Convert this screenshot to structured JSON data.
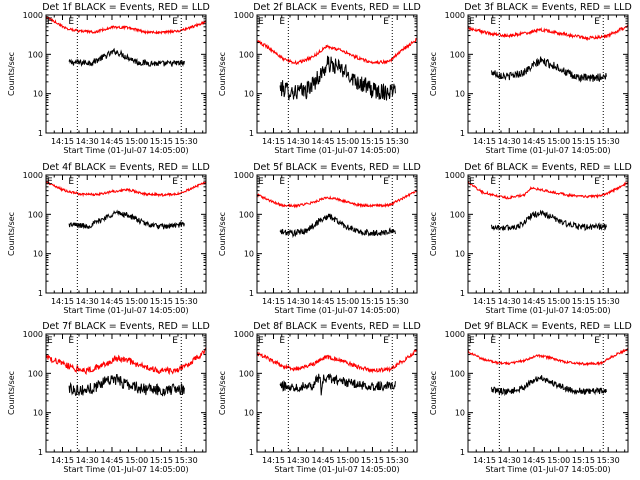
{
  "figure": {
    "x_axis_label": "Start Time (01-Jul-07 14:05:00)",
    "y_axis_label": "Counts/sec",
    "x_tick_labels": [
      "14:15",
      "14:30",
      "14:45",
      "15:00",
      "15:15",
      "15:30"
    ],
    "x_tick_minutes": [
      10,
      25,
      40,
      55,
      70,
      85
    ],
    "x_range_minutes": [
      0,
      97
    ],
    "y_tick_labels": [
      "1",
      "10",
      "100",
      "1000"
    ],
    "y_tick_values": [
      1,
      10,
      100,
      1000
    ],
    "y_range": [
      1,
      1000
    ],
    "y_scale": "log",
    "marker_label": "E",
    "colors": {
      "events": "#000000",
      "lld": "#ff0000"
    }
  },
  "chart_data": [
    {
      "type": "line",
      "title": "Det 1f BLACK = Events, RED = LLD",
      "marker_lines_minutes": [
        19,
        82
      ],
      "series": [
        {
          "name": "Events",
          "color": "#000000",
          "x": [
            14,
            28,
            42,
            56,
            70,
            84
          ],
          "y": [
            62,
            62,
            120,
            62,
            57,
            60
          ],
          "noise": 0.08
        },
        {
          "name": "LLD",
          "color": "#ff0000",
          "x": [
            0,
            6,
            12,
            20,
            30,
            40,
            50,
            60,
            70,
            80,
            87,
            92,
            97
          ],
          "y": [
            900,
            650,
            460,
            390,
            370,
            490,
            480,
            370,
            360,
            390,
            470,
            560,
            680
          ],
          "noise": 0.03
        }
      ]
    },
    {
      "type": "line",
      "title": "Det 2f BLACK = Events, RED = LLD",
      "marker_lines_minutes": [
        19,
        82
      ],
      "series": [
        {
          "name": "Events",
          "color": "#000000",
          "x": [
            14,
            22,
            30,
            38,
            43,
            50,
            60,
            70,
            80,
            84
          ],
          "y": [
            14,
            11,
            12,
            28,
            57,
            45,
            22,
            12,
            11,
            15
          ],
          "noise": 0.22
        },
        {
          "name": "LLD",
          "color": "#ff0000",
          "x": [
            0,
            8,
            16,
            24,
            34,
            42,
            50,
            60,
            70,
            80,
            88,
            97
          ],
          "y": [
            220,
            140,
            75,
            60,
            85,
            160,
            130,
            85,
            62,
            65,
            130,
            240
          ],
          "noise": 0.04
        }
      ]
    },
    {
      "type": "line",
      "title": "Det 3f BLACK = Events, RED = LLD",
      "marker_lines_minutes": [
        19,
        82
      ],
      "series": [
        {
          "name": "Events",
          "color": "#000000",
          "x": [
            14,
            24,
            34,
            44,
            54,
            64,
            74,
            84
          ],
          "y": [
            35,
            27,
            35,
            70,
            48,
            27,
            24,
            28
          ],
          "noise": 0.1
        },
        {
          "name": "LLD",
          "color": "#ff0000",
          "x": [
            0,
            8,
            15,
            24,
            34,
            44,
            52,
            62,
            72,
            82,
            90,
            97
          ],
          "y": [
            480,
            380,
            330,
            300,
            340,
            420,
            370,
            300,
            260,
            270,
            380,
            530
          ],
          "noise": 0.04
        }
      ]
    },
    {
      "type": "line",
      "title": "Det 4f BLACK = Events, RED = LLD",
      "marker_lines_minutes": [
        19,
        82
      ],
      "series": [
        {
          "name": "Events",
          "color": "#000000",
          "x": [
            14,
            26,
            34,
            42,
            50,
            60,
            70,
            84
          ],
          "y": [
            55,
            50,
            75,
            110,
            95,
            58,
            48,
            55
          ],
          "noise": 0.07
        },
        {
          "name": "LLD",
          "color": "#ff0000",
          "x": [
            0,
            10,
            20,
            30,
            40,
            50,
            60,
            70,
            80,
            88,
            97
          ],
          "y": [
            680,
            420,
            330,
            315,
            380,
            420,
            330,
            310,
            330,
            450,
            650
          ],
          "noise": 0.03
        }
      ]
    },
    {
      "type": "line",
      "title": "Det 5f BLACK = Events, RED = LLD",
      "marker_lines_minutes": [
        19,
        82
      ],
      "series": [
        {
          "name": "Events",
          "color": "#000000",
          "x": [
            14,
            22,
            30,
            38,
            44,
            52,
            62,
            72,
            84
          ],
          "y": [
            36,
            33,
            38,
            70,
            90,
            55,
            35,
            33,
            38
          ],
          "noise": 0.08
        },
        {
          "name": "LLD",
          "color": "#ff0000",
          "x": [
            0,
            8,
            16,
            24,
            34,
            42,
            50,
            60,
            70,
            80,
            88,
            97
          ],
          "y": [
            320,
            220,
            165,
            165,
            200,
            270,
            240,
            175,
            165,
            170,
            250,
            400
          ],
          "noise": 0.03
        }
      ]
    },
    {
      "type": "line",
      "title": "Det 6f BLACK = Events, RED = LLD",
      "marker_lines_minutes": [
        19,
        82
      ],
      "series": [
        {
          "name": "Events",
          "color": "#000000",
          "x": [
            14,
            24,
            32,
            38,
            44,
            52,
            62,
            72,
            84
          ],
          "y": [
            48,
            45,
            52,
            90,
            110,
            80,
            52,
            47,
            50
          ],
          "noise": 0.08
        },
        {
          "name": "LLD",
          "color": "#ff0000",
          "x": [
            0,
            8,
            16,
            24,
            34,
            38,
            42,
            50,
            60,
            70,
            80,
            88,
            97
          ],
          "y": [
            650,
            380,
            300,
            260,
            310,
            460,
            440,
            380,
            310,
            280,
            290,
            400,
            650
          ],
          "noise": 0.03
        }
      ]
    },
    {
      "type": "line",
      "title": "Det 7f BLACK = Events, RED = LLD",
      "marker_lines_minutes": [
        19,
        82
      ],
      "series": [
        {
          "name": "Events",
          "color": "#000000",
          "x": [
            14,
            22,
            30,
            38,
            44,
            52,
            62,
            72,
            84
          ],
          "y": [
            42,
            36,
            45,
            75,
            65,
            48,
            38,
            37,
            40
          ],
          "noise": 0.15
        },
        {
          "name": "LLD",
          "color": "#ff0000",
          "x": [
            0,
            8,
            16,
            24,
            34,
            42,
            50,
            60,
            70,
            80,
            88,
            97
          ],
          "y": [
            270,
            190,
            140,
            115,
            160,
            240,
            210,
            140,
            115,
            120,
            190,
            360
          ],
          "noise": 0.08
        }
      ]
    },
    {
      "type": "line",
      "title": "Det 8f BLACK = Events, RED = LLD",
      "marker_lines_minutes": [
        19,
        82
      ],
      "series": [
        {
          "name": "Events",
          "color": "#000000",
          "x": [
            14,
            24,
            34,
            38,
            39,
            40,
            44,
            52,
            62,
            72,
            84
          ],
          "y": [
            48,
            45,
            52,
            85,
            28,
            70,
            75,
            62,
            50,
            47,
            50
          ],
          "noise": 0.12
        },
        {
          "name": "LLD",
          "color": "#ff0000",
          "x": [
            0,
            8,
            16,
            24,
            34,
            42,
            50,
            60,
            70,
            80,
            88,
            97
          ],
          "y": [
            330,
            220,
            150,
            125,
            170,
            260,
            220,
            150,
            120,
            125,
            200,
            380
          ],
          "noise": 0.05
        }
      ]
    },
    {
      "type": "line",
      "title": "Det 9f BLACK = Events, RED = LLD",
      "marker_lines_minutes": [
        19,
        82
      ],
      "series": [
        {
          "name": "Events",
          "color": "#000000",
          "x": [
            14,
            24,
            32,
            40,
            44,
            52,
            62,
            72,
            84
          ],
          "y": [
            38,
            34,
            40,
            65,
            80,
            55,
            38,
            34,
            37
          ],
          "noise": 0.08
        },
        {
          "name": "LLD",
          "color": "#ff0000",
          "x": [
            0,
            8,
            16,
            24,
            34,
            42,
            50,
            60,
            70,
            80,
            88,
            97
          ],
          "y": [
            350,
            240,
            190,
            175,
            210,
            280,
            250,
            190,
            175,
            180,
            270,
            420
          ],
          "noise": 0.03
        }
      ]
    }
  ]
}
